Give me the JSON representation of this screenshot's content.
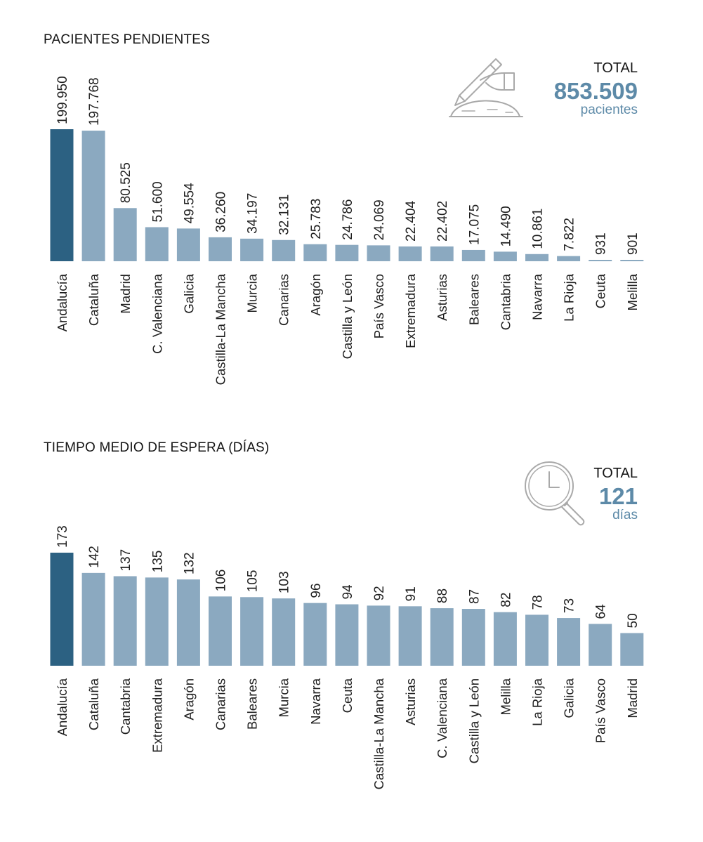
{
  "colors": {
    "highlight": "#2c6182",
    "bar": "#8ba9c0",
    "accent": "#5d8aa8",
    "icon_stroke": "#a9a9a9"
  },
  "section1": {
    "title": "PACIENTES PENDIENTES",
    "total_label": "TOTAL",
    "total_value": "853.509",
    "total_unit": "pacientes",
    "icon": "hand-writing-icon"
  },
  "section2": {
    "title": "TIEMPO MEDIO DE ESPERA (DÍAS)",
    "total_label": "TOTAL",
    "total_value": "121",
    "total_unit": "días",
    "icon": "clock-magnifier-icon"
  },
  "chart_data": [
    {
      "type": "bar",
      "title": "PACIENTES PENDIENTES",
      "categories": [
        "Andalucía",
        "Cataluña",
        "Madrid",
        "C. Valenciana",
        "Galicia",
        "Castilla-La Mancha",
        "Murcia",
        "Canarias",
        "Aragón",
        "Castilla y León",
        "País Vasco",
        "Extremadura",
        "Asturias",
        "Baleares",
        "Cantabria",
        "Navarra",
        "La Rioja",
        "Ceuta",
        "Melilla"
      ],
      "values": [
        199950,
        197768,
        80525,
        51600,
        49554,
        36260,
        34197,
        32131,
        25783,
        24786,
        24069,
        22404,
        22402,
        17075,
        14490,
        10861,
        7822,
        931,
        901
      ],
      "labels": [
        "199.950",
        "197.768",
        "80.525",
        "51.600",
        "49.554",
        "36.260",
        "34.197",
        "32.131",
        "25.783",
        "24.786",
        "24.069",
        "22.404",
        "22.402",
        "17.075",
        "14.490",
        "10.861",
        "7.822",
        "931",
        "901"
      ],
      "highlight_index": 0,
      "xlabel": "",
      "ylabel": "",
      "ylim": [
        0,
        199950
      ]
    },
    {
      "type": "bar",
      "title": "TIEMPO MEDIO DE ESPERA (DÍAS)",
      "categories": [
        "Andalucía",
        "Cataluña",
        "Cantabria",
        "Extremadura",
        "Aragón",
        "Canarias",
        "Baleares",
        "Murcia",
        "Navarra",
        "Ceuta",
        "Castilla-La Mancha",
        "Asturias",
        "C. Valenciana",
        "Castilla y León",
        "Melilla",
        "La Rioja",
        "Galicia",
        "País Vasco",
        "Madrid"
      ],
      "values": [
        173,
        142,
        137,
        135,
        132,
        106,
        105,
        103,
        96,
        94,
        92,
        91,
        88,
        87,
        82,
        78,
        73,
        64,
        50
      ],
      "labels": [
        "173",
        "142",
        "137",
        "135",
        "132",
        "106",
        "105",
        "103",
        "96",
        "94",
        "92",
        "91",
        "88",
        "87",
        "82",
        "78",
        "73",
        "64",
        "50"
      ],
      "highlight_index": 0,
      "xlabel": "",
      "ylabel": "",
      "ylim": [
        0,
        173
      ]
    }
  ]
}
